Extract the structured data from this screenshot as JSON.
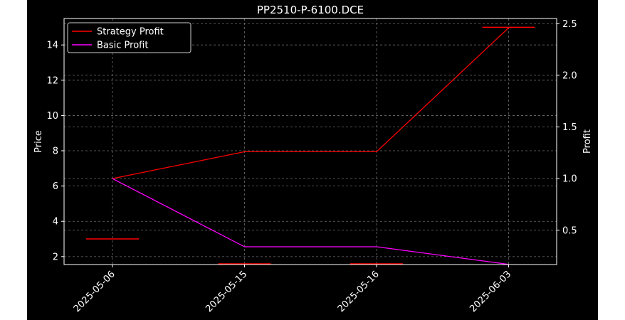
{
  "chart_data": {
    "type": "line",
    "title": "PP2510-P-6100.DCE",
    "categories": [
      "2025-05-06",
      "2025-05-15",
      "2025-05-16",
      "2025-06-03"
    ],
    "left_axis": {
      "label": "Price",
      "ylim": [
        1.55,
        15.5
      ],
      "ticks": [
        2,
        4,
        6,
        8,
        10,
        12,
        14
      ]
    },
    "right_axis": {
      "label": "Profit",
      "ylim": [
        0.168,
        2.55
      ],
      "ticks": [
        "0.5",
        "1.0",
        "1.5",
        "2.0",
        "2.5"
      ]
    },
    "series": [
      {
        "name": "Strategy Profit",
        "color": "#ff0000",
        "axis": "right",
        "values": [
          1.0,
          1.26,
          1.26,
          2.46
        ]
      },
      {
        "name": "Basic Profit",
        "color": "#ff00ff",
        "axis": "right",
        "values": [
          1.0,
          0.34,
          0.34,
          0.17
        ]
      }
    ],
    "price_markers": {
      "color": "#ff0000",
      "values": [
        3.0,
        1.5,
        1.5,
        15.0
      ]
    },
    "legend": "upper-left",
    "grid": true
  }
}
